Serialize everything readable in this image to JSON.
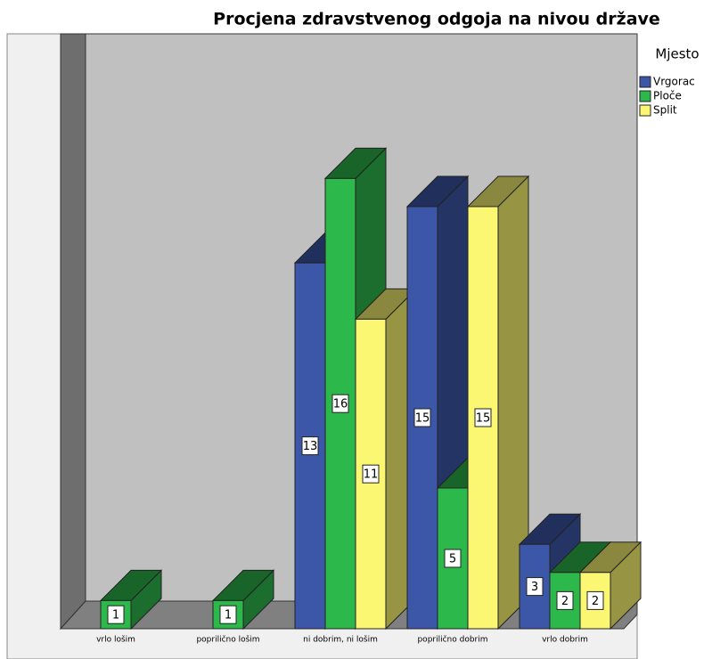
{
  "chart_data": {
    "type": "bar3d",
    "title": "Procjena zdravstvenog odgoja na nivou države",
    "legend_title": "Mjesto",
    "legend": "right",
    "categories": [
      "vrlo lošim",
      "poprilično lošim",
      "ni dobrim, ni lošim",
      "poprilično dobrim",
      "vrlo dobrim"
    ],
    "series": [
      {
        "name": "Vrgorac",
        "color": "#3c56a8",
        "values": [
          null,
          null,
          13,
          15,
          3
        ]
      },
      {
        "name": "Ploče",
        "color": "#2db84b",
        "values": [
          1,
          1,
          16,
          5,
          2
        ]
      },
      {
        "name": "Split",
        "color": "#fbf772",
        "values": [
          null,
          null,
          11,
          15,
          2
        ]
      }
    ]
  }
}
